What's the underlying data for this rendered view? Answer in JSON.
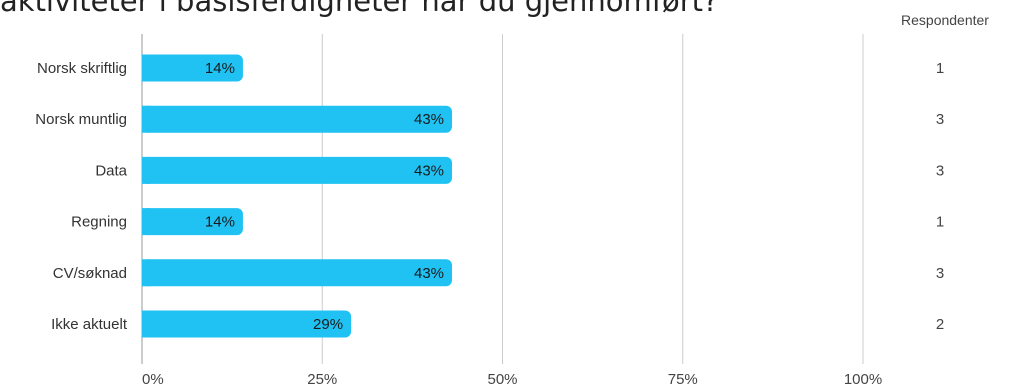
{
  "title": "aktiviteter i basisferdigheter har du gjennomført?",
  "chart_data": {
    "type": "bar",
    "orientation": "horizontal",
    "title": "aktiviteter i basisferdigheter har du gjennomført?",
    "categories": [
      "Norsk skriftlig",
      "Norsk muntlig",
      "Data",
      "Regning",
      "CV/søknad",
      "Ikke aktuelt"
    ],
    "values": [
      14,
      43,
      43,
      14,
      43,
      29
    ],
    "value_labels": [
      "14%",
      "43%",
      "43%",
      "14%",
      "43%",
      "29%"
    ],
    "respondents_header": "Respondenter",
    "respondents": [
      "1",
      "3",
      "3",
      "1",
      "3",
      "2"
    ],
    "xlim": [
      0,
      100
    ],
    "x_ticks": [
      0,
      25,
      50,
      75,
      100
    ],
    "x_tick_labels": [
      "0%",
      "25%",
      "50%",
      "75%",
      "100%"
    ],
    "grid": true,
    "bar_color": "#1fc2f2",
    "grid_color": "#cccccc"
  }
}
